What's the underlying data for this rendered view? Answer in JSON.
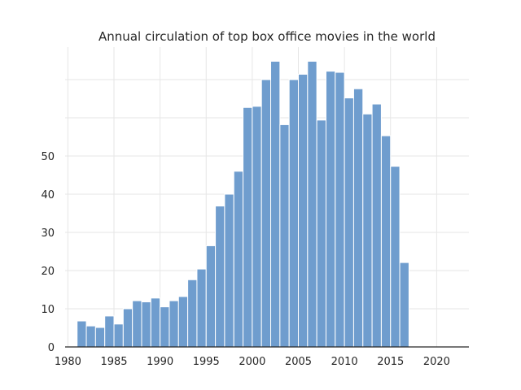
{
  "chart_data": {
    "type": "bar",
    "title": "Annual circulation of top box office movies in the world",
    "xlabel": "",
    "ylabel": "",
    "x": [
      1981,
      1982,
      1983,
      1984,
      1985,
      1986,
      1987,
      1988,
      1989,
      1990,
      1991,
      1992,
      1993,
      1994,
      1995,
      1996,
      1997,
      1998,
      1999,
      2000,
      2001,
      2002,
      2003,
      2004,
      2005,
      2006,
      2007,
      2008,
      2009,
      2010,
      2011,
      2012,
      2013,
      2014,
      2015,
      2016
    ],
    "values": [
      6.8,
      5.5,
      5.1,
      8.1,
      6.0,
      10.0,
      12.1,
      11.8,
      12.8,
      10.5,
      12.1,
      13.2,
      17.6,
      20.4,
      26.5,
      36.9,
      40.0,
      46.0,
      62.7,
      63.0,
      70.0,
      74.8,
      58.2,
      70.0,
      71.4,
      74.8,
      59.4,
      72.2,
      71.9,
      65.2,
      67.6,
      61.0,
      63.6,
      55.3,
      47.3,
      22.1
    ],
    "xlim": [
      1979.7,
      2023.5
    ],
    "ylim": [
      0,
      78.5
    ],
    "xticks": [
      "1980",
      "1985",
      "1990",
      "1995",
      "2000",
      "2005",
      "2010",
      "2015",
      "2020"
    ],
    "yticks": [
      "0",
      "10",
      "20",
      "30",
      "40",
      "50"
    ],
    "grid_y_values": [
      0,
      10,
      20,
      30,
      40,
      50,
      60,
      70
    ],
    "grid": true,
    "bar_color": "#6f9dce",
    "legend": "none"
  }
}
